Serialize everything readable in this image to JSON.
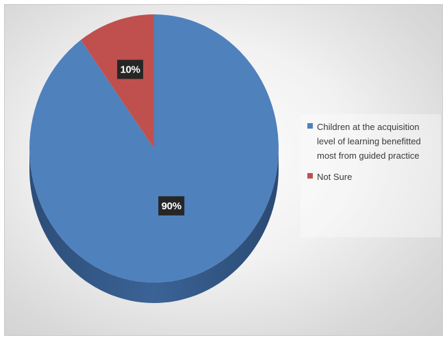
{
  "chart_data": {
    "type": "pie",
    "title": "",
    "slices": [
      {
        "label": "Children at the acquisition level of learning benefitted most from guided practice",
        "value": 90,
        "data_label": "90%",
        "color": "#4f81bd"
      },
      {
        "label": "Not Sure",
        "value": 10,
        "data_label": "10%",
        "color": "#c0504d"
      }
    ],
    "style": "3d",
    "legend_position": "right"
  }
}
